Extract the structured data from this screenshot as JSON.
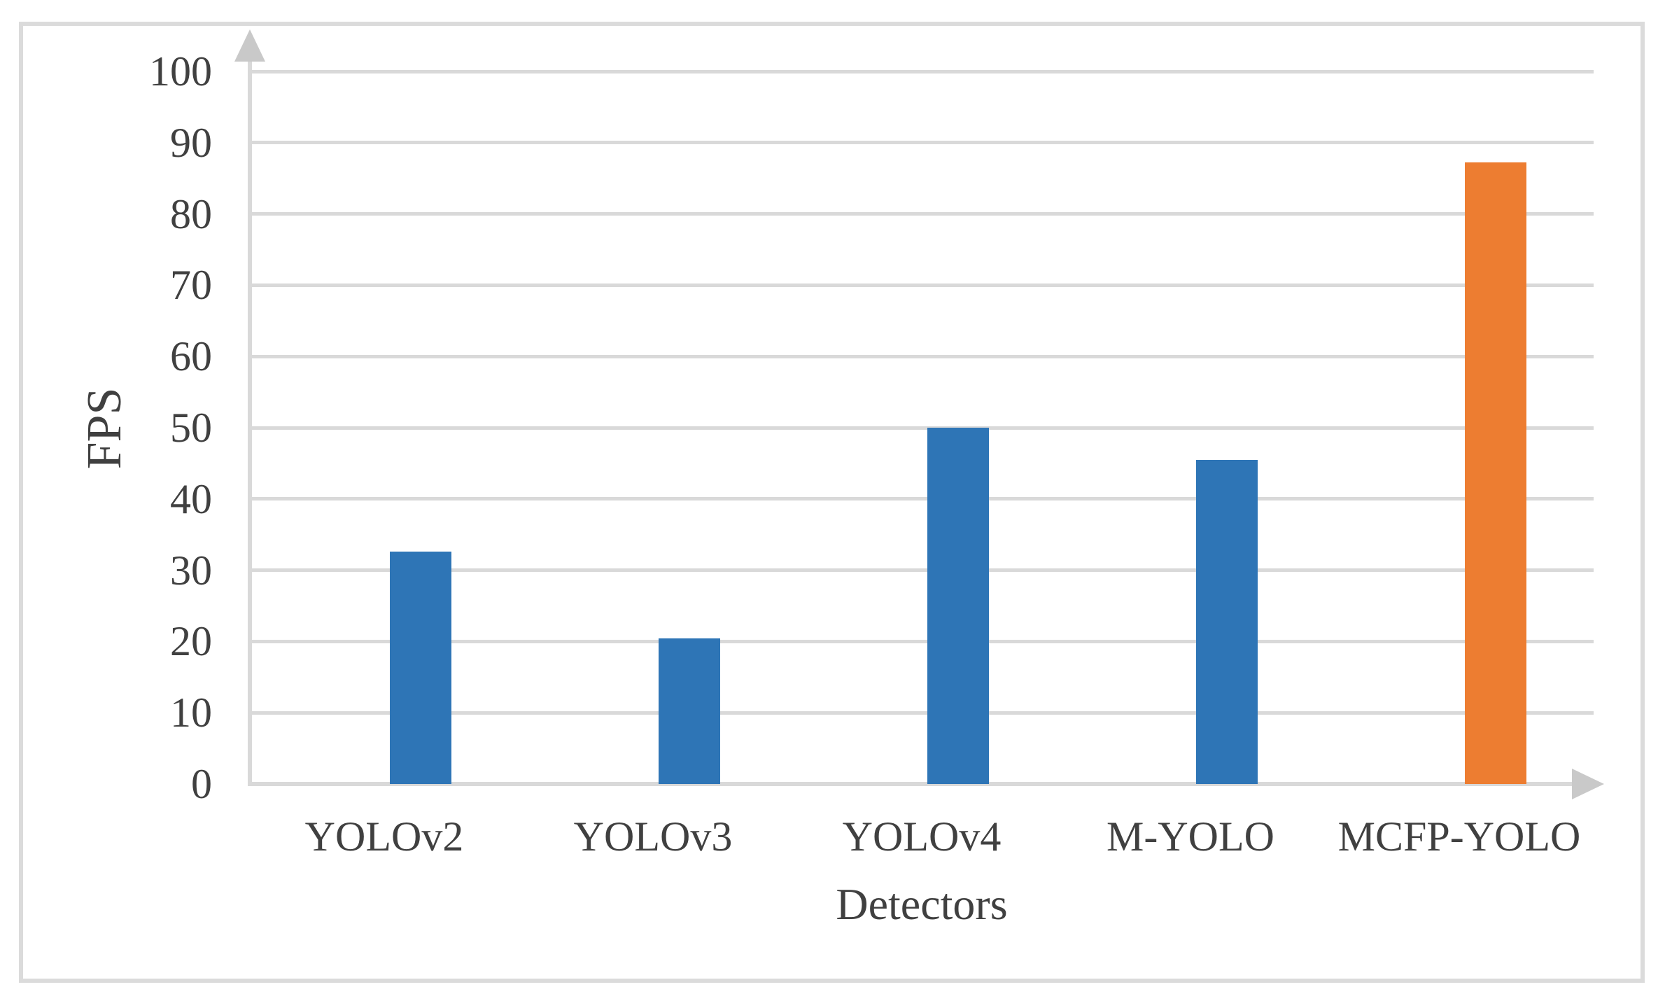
{
  "chart_data": {
    "type": "bar",
    "title": "",
    "xlabel": "Detectors",
    "ylabel": "FPS",
    "categories": [
      "YOLOv2",
      "YOLOv3",
      "YOLOv4",
      "M-YOLO",
      "MCFP-YOLO"
    ],
    "values": [
      32.6,
      20.4,
      50,
      45.5,
      87.2
    ],
    "series": [
      {
        "name": "FPS",
        "values": [
          32.6,
          20.4,
          50,
          45.5,
          87.2
        ]
      }
    ],
    "bar_colors": [
      "#2E75B6",
      "#2E75B6",
      "#2E75B6",
      "#2E75B6",
      "#ED7D31"
    ],
    "highlighted_category": "MCFP-YOLO",
    "ylim": [
      0,
      100
    ],
    "yticks": [
      0,
      10,
      20,
      30,
      40,
      50,
      60,
      70,
      80,
      90,
      100
    ],
    "grid": "horizontal-on",
    "legend": "none",
    "axis_arrows": true
  },
  "colors": {
    "bar_blue": "#2E75B6",
    "bar_orange": "#ED7D31",
    "gridline": "#D9D9D9",
    "axis_line": "#D9D9D9",
    "arrow": "#C9C9C9",
    "text": "#404040",
    "frame_border": "#DBDBDB",
    "background": "#FFFFFF"
  }
}
